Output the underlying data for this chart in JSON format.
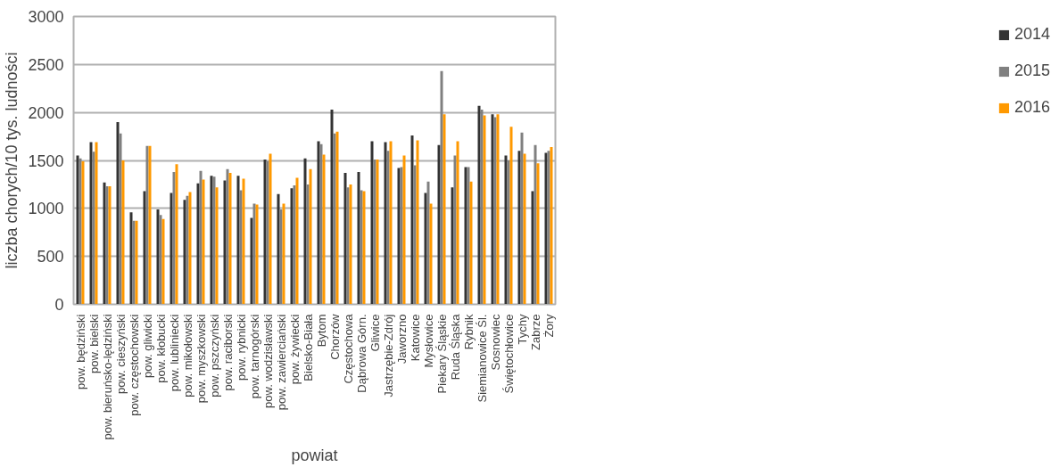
{
  "chart_data": {
    "type": "bar",
    "xlabel": "powiat",
    "ylabel": "liczba chorych/10 tys. ludności",
    "categories": [
      "pow. będziński",
      "pow. bielski",
      "pow. bieruńsko-lędziński",
      "pow. cieszyński",
      "pow. częstochowski",
      "pow. gliwicki",
      "pow. kłobucki",
      "pow. lubliniecki",
      "pow. mikołowski",
      "pow. myszkowski",
      "pow. pszczyński",
      "pow. raciborski",
      "pow. rybnicki",
      "pow. tarnogórski",
      "pow. wodzisławski",
      "pow. zawierciański",
      "pow. żywiecki",
      "Bielsko-Biała",
      "Bytom",
      "Chorzów",
      "Częstochowa",
      "Dąbrowa Górn.",
      "Gliwice",
      "Jastrzębie-Zdrój",
      "Jaworzno",
      "Katowice",
      "Mysłowice",
      "Piekary Śląskie",
      "Ruda Śląska",
      "Rybnik",
      "Siemianowice Śl.",
      "Sosnowiec",
      "Świętochłowice",
      "Tychy",
      "Zabrze",
      "Żory"
    ],
    "series": [
      {
        "name": "2014",
        "color": "#333333",
        "values": [
          1550,
          1690,
          1270,
          1900,
          960,
          1180,
          990,
          1160,
          1090,
          1260,
          1340,
          1290,
          1340,
          900,
          1510,
          1150,
          1210,
          1520,
          1700,
          2030,
          1370,
          1380,
          1700,
          1690,
          1420,
          1760,
          1160,
          1660,
          1220,
          1430,
          2070,
          1980,
          1550,
          1600,
          1180,
          1580
        ]
      },
      {
        "name": "2015",
        "color": "#808080",
        "values": [
          1520,
          1590,
          1230,
          1780,
          870,
          1650,
          930,
          1380,
          1130,
          1390,
          1330,
          1410,
          1190,
          1050,
          1490,
          990,
          1240,
          1250,
          1670,
          1780,
          1220,
          1190,
          1510,
          1600,
          1430,
          1450,
          1280,
          2430,
          1550,
          1430,
          2030,
          1950,
          1500,
          1790,
          1660,
          1600
        ]
      },
      {
        "name": "2016",
        "color": "#ff9900",
        "values": [
          1490,
          1690,
          1230,
          1500,
          870,
          1650,
          890,
          1460,
          1170,
          1300,
          1220,
          1370,
          1310,
          1040,
          1570,
          1050,
          1320,
          1410,
          1560,
          1800,
          1250,
          1180,
          1510,
          1700,
          1550,
          1710,
          1050,
          1980,
          1700,
          1280,
          1970,
          1980,
          1850,
          1570,
          1470,
          1640
        ]
      }
    ],
    "ylim": [
      0,
      3000
    ],
    "yticks": [
      0,
      500,
      1000,
      1500,
      2000,
      2500,
      3000
    ],
    "grid": "y",
    "legend": "right"
  }
}
